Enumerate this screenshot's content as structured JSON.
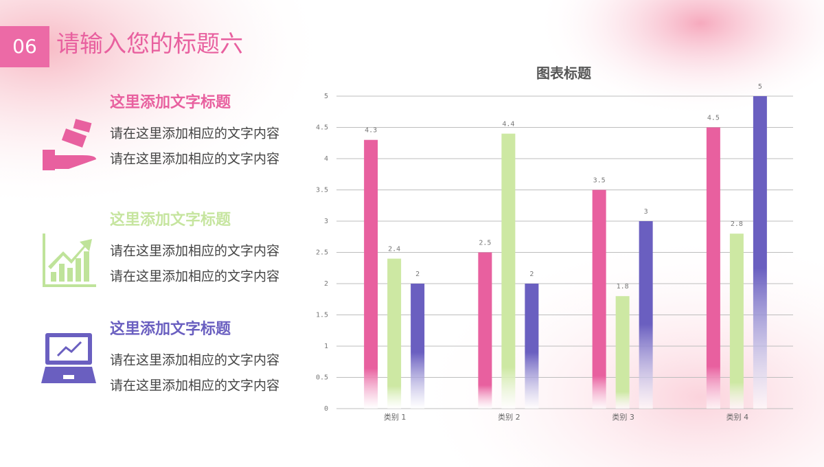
{
  "header": {
    "number": "06",
    "title": "请输入您的标题六"
  },
  "items": [
    {
      "title": "这里添加文字标题",
      "lines": [
        "请在这里添加相应的文字内容",
        "请在这里添加相应的文字内容"
      ]
    },
    {
      "title": "这里添加文字标题",
      "lines": [
        "请在这里添加相应的文字内容",
        "请在这里添加相应的文字内容"
      ]
    },
    {
      "title": "这里添加文字标题",
      "lines": [
        "请在这里添加相应的文字内容",
        "请在这里添加相应的文字内容"
      ]
    }
  ],
  "chart_data": {
    "type": "bar",
    "title": "图表标题",
    "categories": [
      "类别 1",
      "类别 2",
      "类别 3",
      "类别 4"
    ],
    "series": [
      {
        "color": "#e8609f",
        "values": [
          4.3,
          2.5,
          3.5,
          4.5
        ]
      },
      {
        "color": "#cde8a3",
        "values": [
          2.4,
          4.4,
          1.8,
          2.8
        ]
      },
      {
        "color": "#6a5fc0",
        "values": [
          2,
          2,
          3,
          5
        ]
      }
    ],
    "ylim": [
      0,
      5
    ],
    "yticks": [
      0,
      0.5,
      1,
      1.5,
      2,
      2.5,
      3,
      3.5,
      4,
      4.5,
      5
    ],
    "grid": true
  }
}
